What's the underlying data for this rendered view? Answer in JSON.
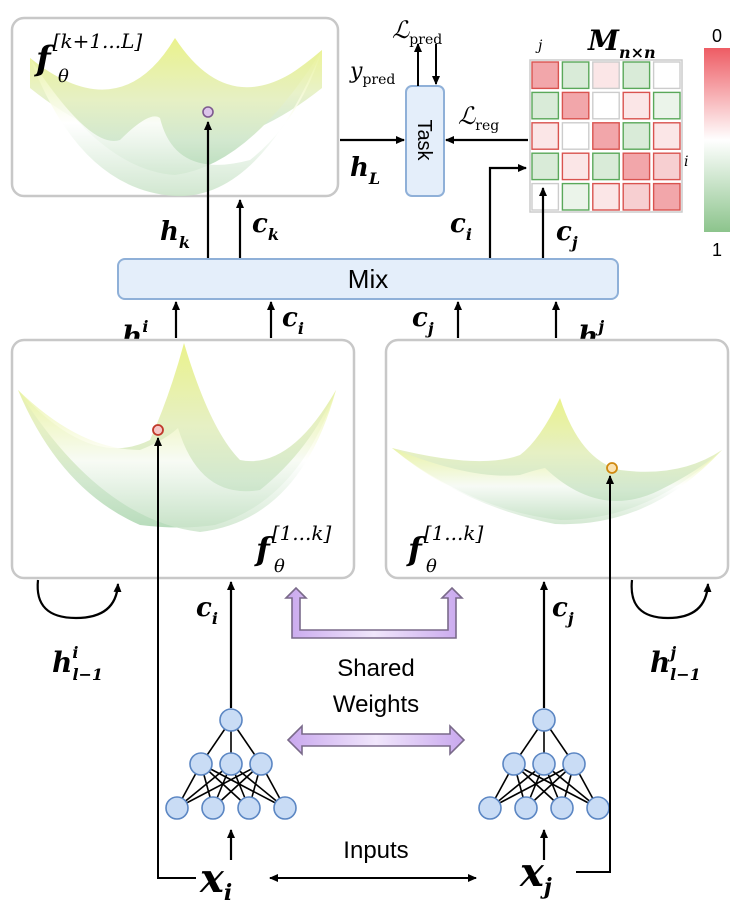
{
  "mix": {
    "label": "Mix"
  },
  "task": {
    "label": "Task"
  },
  "shared": {
    "line1": "Shared",
    "line2": "Weights"
  },
  "inputs": {
    "label": "Inputs"
  },
  "colorbar": {
    "top": "0",
    "bottom": "1"
  },
  "matrix": {
    "symbol": "M",
    "subscript": "n×n",
    "col_index": "j",
    "row_index": "i",
    "colors": {
      "red_strong": "#f2a6aa",
      "red_mid": "#f7cfd1",
      "red_light": "#fbe6e7",
      "green_strong": "#bcdcbc",
      "green_mid": "#d9ebd8",
      "green_light": "#ebf4ea",
      "white": "#ffffff",
      "border_red": "#d9534f",
      "border_green": "#5aa85a",
      "border_plain": "#cccccc"
    },
    "cells": [
      [
        "rs",
        "gm",
        "rl",
        "gm",
        "w"
      ],
      [
        "gm",
        "rs",
        "w",
        "rl",
        "gl"
      ],
      [
        "rl",
        "w",
        "rs",
        "gm",
        "rl"
      ],
      [
        "gm",
        "rl",
        "gm",
        "rs",
        "rm"
      ],
      [
        "w",
        "gl",
        "rl",
        "rm",
        "rs"
      ]
    ],
    "borders": [
      [
        "r",
        "g",
        "p",
        "g",
        "p"
      ],
      [
        "g",
        "r",
        "p",
        "r",
        "g"
      ],
      [
        "r",
        "p",
        "r",
        "g",
        "r"
      ],
      [
        "g",
        "r",
        "g",
        "r",
        "r"
      ],
      [
        "p",
        "g",
        "r",
        "r",
        "r"
      ]
    ]
  },
  "labels": {
    "f_top": {
      "base": "f",
      "sub": "θ",
      "sup": "[k+1...L]"
    },
    "f_left": {
      "base": "f",
      "sub": "θ",
      "sup": "[1...k]"
    },
    "f_right": {
      "base": "f",
      "sub": "θ",
      "sup": "[1...k]"
    },
    "L_pred": {
      "base": "ℒ",
      "sub": "pred"
    },
    "L_reg": {
      "base": "ℒ",
      "sub": "reg"
    },
    "y_pred": {
      "base": "y",
      "sub": "pred"
    },
    "h_L": {
      "base": "h",
      "sub": "L"
    },
    "h_k": {
      "base": "h",
      "sub": "k"
    },
    "c_k": {
      "base": "c",
      "sub": "k"
    },
    "c_i_up": {
      "base": "c",
      "sub": "i"
    },
    "c_j_up": {
      "base": "c",
      "sub": "j"
    },
    "h_ki": {
      "base": "h",
      "sub": "k",
      "sup": "i"
    },
    "c_i_mid": {
      "base": "c",
      "sub": "i"
    },
    "c_j_mid": {
      "base": "c",
      "sub": "j"
    },
    "h_kj": {
      "base": "h",
      "sub": "k",
      "sup": "j"
    },
    "h_l1_i": {
      "base": "h",
      "sub": "l−1",
      "sup": "i"
    },
    "h_l1_j": {
      "base": "h",
      "sub": "l−1",
      "sup": "j"
    },
    "c_i_low": {
      "base": "c",
      "sub": "i"
    },
    "c_j_low": {
      "base": "c",
      "sub": "j"
    },
    "x_i": {
      "base": "x",
      "sub": "i"
    },
    "x_j": {
      "base": "x",
      "sub": "j"
    }
  },
  "colors": {
    "box_border": "#c8c8c8",
    "blue_fill": "#e4eefa",
    "blue_stroke": "#8fb0d8",
    "node_fill": "#c9dcf5",
    "node_stroke": "#5b86c3",
    "purple_fill": "#e2d2f5",
    "purple_stroke": "#7a6a8a",
    "surface_yellow": "#e4f08a",
    "surface_green": "#c6e3c2",
    "marker_purple": "#b98ac9",
    "marker_red": "#d9534f",
    "marker_orange": "#e0a030"
  }
}
